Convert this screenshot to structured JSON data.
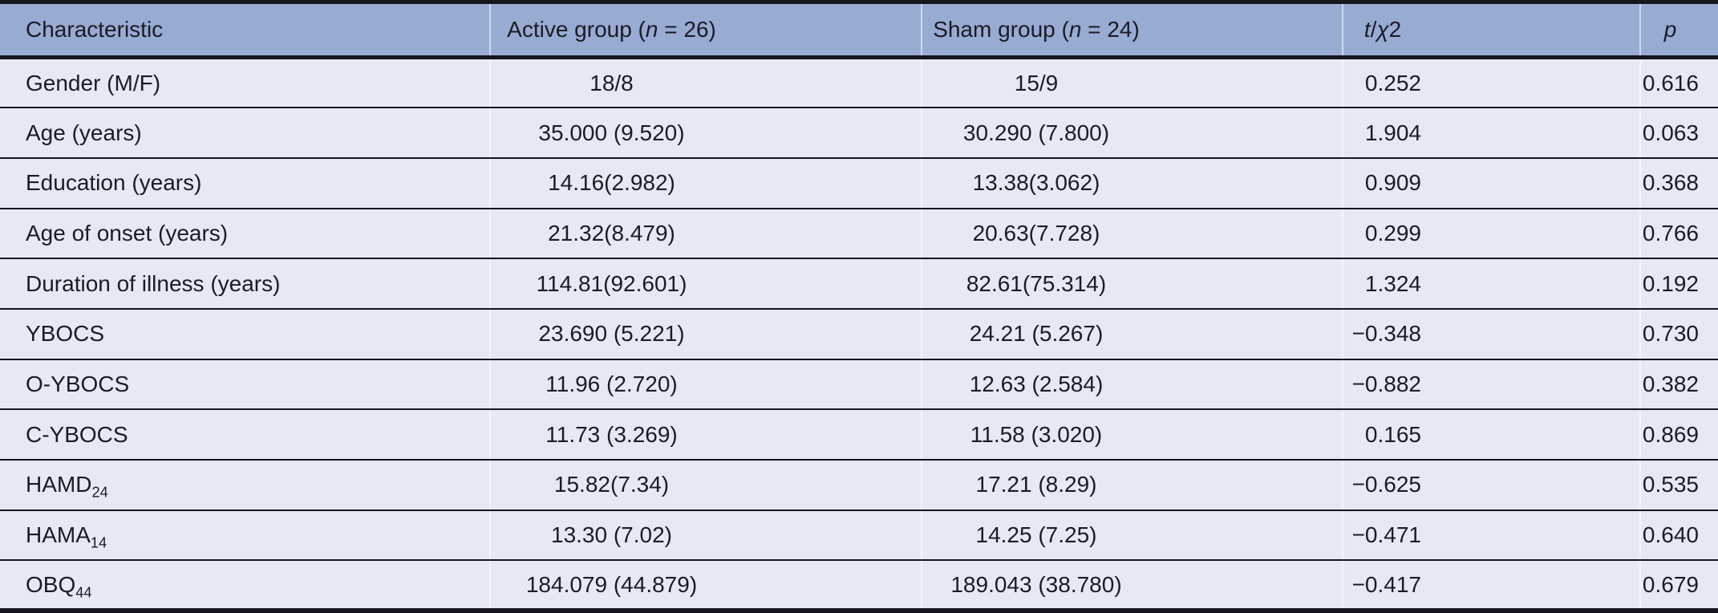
{
  "table": {
    "colors": {
      "header_bg": "#97abd3",
      "row_bg": "#e5e9f4",
      "rule": "#16161f",
      "text": "#1b1b24"
    },
    "header": {
      "characteristic": "Characteristic",
      "active_pre": "Active group (",
      "active_n": "n",
      "active_post": " = 26)",
      "sham_pre": "Sham group (",
      "sham_n": "n",
      "sham_post": " = 24)",
      "stat_t": "t",
      "stat_slash": "/",
      "stat_chi": "χ",
      "stat_two": "2",
      "p_label": "p"
    },
    "rows": [
      {
        "label": "Gender (M/F)",
        "active": "18/8",
        "sham": "15/9",
        "stat": "0.252",
        "p": "0.616"
      },
      {
        "label": "Age (years)",
        "active": "35.000 (9.520)",
        "sham": "30.290 (7.800)",
        "stat": "1.904",
        "p": "0.063"
      },
      {
        "label": "Education (years)",
        "active": "14.16(2.982)",
        "sham": "13.38(3.062)",
        "stat": "0.909",
        "p": "0.368"
      },
      {
        "label": "Age of onset (years)",
        "active": "21.32(8.479)",
        "sham": "20.63(7.728)",
        "stat": "0.299",
        "p": "0.766"
      },
      {
        "label": "Duration of illness (years)",
        "active": "114.81(92.601)",
        "sham": "82.61(75.314)",
        "stat": "1.324",
        "p": "0.192"
      },
      {
        "label": "YBOCS",
        "active": "23.690 (5.221)",
        "sham": "24.21 (5.267)",
        "stat": "−0.348",
        "p": "0.730"
      },
      {
        "label": "O-YBOCS",
        "active": "11.96 (2.720)",
        "sham": "12.63 (2.584)",
        "stat": "−0.882",
        "p": "0.382"
      },
      {
        "label": "C-YBOCS",
        "active": "11.73 (3.269)",
        "sham": "11.58 (3.020)",
        "stat": "0.165",
        "p": "0.869"
      },
      {
        "label": "HAMD",
        "label_sub": "24",
        "active": "15.82(7.34)",
        "sham": "17.21 (8.29)",
        "stat": "−0.625",
        "p": "0.535"
      },
      {
        "label": "HAMA",
        "label_sub": "14",
        "active": "13.30 (7.02)",
        "sham": "14.25 (7.25)",
        "stat": "−0.471",
        "p": "0.640"
      },
      {
        "label": "OBQ",
        "label_sub": "44",
        "active": "184.079 (44.879)",
        "sham": "189.043 (38.780)",
        "stat": "−0.417",
        "p": "0.679"
      }
    ]
  }
}
